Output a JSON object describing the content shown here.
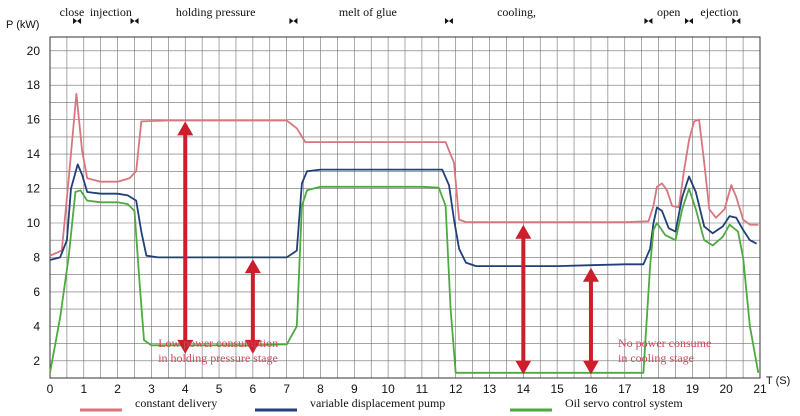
{
  "chart_data": {
    "type": "line",
    "ylabel": "P (kW)",
    "xlabel": "T (S)",
    "xlim": [
      0,
      21
    ],
    "ylim": [
      1,
      20.8
    ],
    "x_ticks": [
      "0",
      "1",
      "2",
      "3",
      "4",
      "5",
      "6",
      "7",
      "8",
      "9",
      "10",
      "11",
      "12",
      "13",
      "14",
      "15",
      "16",
      "17",
      "18",
      "19",
      "20",
      "21"
    ],
    "y_ticks": [
      "2",
      "4",
      "6",
      "8",
      "10",
      "12",
      "14",
      "16",
      "18",
      "20"
    ],
    "grid": true,
    "legend_position": "bottom",
    "stages": [
      {
        "label": "close",
        "x": 0.65
      },
      {
        "label": "injection",
        "x": 1.8
      },
      {
        "label": "holding pressure",
        "x": 4.9
      },
      {
        "label": "melt of glue",
        "x": 9.4
      },
      {
        "label": "cooling,",
        "x": 13.8
      },
      {
        "label": "open",
        "x": 18.3
      },
      {
        "label": "ejection",
        "x": 19.8
      }
    ],
    "stage_markers": [
      0.8,
      2.5,
      7.2,
      11.8,
      17.7,
      18.9,
      20.3
    ],
    "series": [
      {
        "name": "constant delivery",
        "color": "#d9757f",
        "points": [
          [
            0,
            8.1
          ],
          [
            0.35,
            8.4
          ],
          [
            0.55,
            12.5
          ],
          [
            0.78,
            17.5
          ],
          [
            0.95,
            14.2
          ],
          [
            1.1,
            12.6
          ],
          [
            1.5,
            12.4
          ],
          [
            2.0,
            12.4
          ],
          [
            2.35,
            12.6
          ],
          [
            2.55,
            13.0
          ],
          [
            2.7,
            15.9
          ],
          [
            3.5,
            15.95
          ],
          [
            5,
            15.95
          ],
          [
            6,
            15.95
          ],
          [
            7.0,
            15.95
          ],
          [
            7.3,
            15.5
          ],
          [
            7.55,
            14.7
          ],
          [
            8,
            14.7
          ],
          [
            9,
            14.7
          ],
          [
            10,
            14.7
          ],
          [
            11,
            14.7
          ],
          [
            11.7,
            14.7
          ],
          [
            11.95,
            13.5
          ],
          [
            12.1,
            10.2
          ],
          [
            12.3,
            10.05
          ],
          [
            13,
            10.05
          ],
          [
            14,
            10.05
          ],
          [
            15,
            10.05
          ],
          [
            16,
            10.05
          ],
          [
            17,
            10.05
          ],
          [
            17.7,
            10.1
          ],
          [
            17.85,
            11.0
          ],
          [
            17.95,
            12.1
          ],
          [
            18.1,
            12.3
          ],
          [
            18.25,
            11.9
          ],
          [
            18.4,
            11.0
          ],
          [
            18.6,
            10.9
          ],
          [
            18.75,
            13.0
          ],
          [
            18.9,
            14.8
          ],
          [
            19.05,
            15.9
          ],
          [
            19.2,
            16.0
          ],
          [
            19.35,
            13.5
          ],
          [
            19.5,
            10.8
          ],
          [
            19.7,
            10.3
          ],
          [
            19.95,
            10.8
          ],
          [
            20.15,
            12.2
          ],
          [
            20.3,
            11.5
          ],
          [
            20.5,
            10.2
          ],
          [
            20.7,
            9.9
          ],
          [
            20.95,
            9.9
          ]
        ]
      },
      {
        "name": "variable displacement pump",
        "color": "#213f7a",
        "points": [
          [
            0,
            7.85
          ],
          [
            0.3,
            8.0
          ],
          [
            0.5,
            9.0
          ],
          [
            0.62,
            12.0
          ],
          [
            0.82,
            13.4
          ],
          [
            0.95,
            12.8
          ],
          [
            1.1,
            11.8
          ],
          [
            1.5,
            11.7
          ],
          [
            2.0,
            11.7
          ],
          [
            2.3,
            11.6
          ],
          [
            2.55,
            11.3
          ],
          [
            2.7,
            9.5
          ],
          [
            2.85,
            8.1
          ],
          [
            3.2,
            8.0
          ],
          [
            5,
            8.0
          ],
          [
            6,
            8.0
          ],
          [
            7.0,
            8.0
          ],
          [
            7.3,
            8.4
          ],
          [
            7.45,
            12.3
          ],
          [
            7.6,
            13.0
          ],
          [
            8,
            13.1
          ],
          [
            9,
            13.1
          ],
          [
            10,
            13.1
          ],
          [
            11,
            13.1
          ],
          [
            11.6,
            13.1
          ],
          [
            11.8,
            12.2
          ],
          [
            11.95,
            10.2
          ],
          [
            12.1,
            8.5
          ],
          [
            12.3,
            7.7
          ],
          [
            12.6,
            7.5
          ],
          [
            14,
            7.5
          ],
          [
            15,
            7.5
          ],
          [
            16,
            7.55
          ],
          [
            17,
            7.6
          ],
          [
            17.55,
            7.6
          ],
          [
            17.75,
            8.5
          ],
          [
            17.85,
            10.0
          ],
          [
            17.95,
            10.9
          ],
          [
            18.1,
            10.7
          ],
          [
            18.3,
            9.7
          ],
          [
            18.5,
            9.5
          ],
          [
            18.7,
            11.5
          ],
          [
            18.9,
            12.7
          ],
          [
            19.1,
            11.8
          ],
          [
            19.35,
            9.8
          ],
          [
            19.6,
            9.4
          ],
          [
            19.9,
            9.8
          ],
          [
            20.1,
            10.4
          ],
          [
            20.3,
            10.3
          ],
          [
            20.5,
            9.6
          ],
          [
            20.7,
            9.0
          ],
          [
            20.9,
            8.8
          ]
        ]
      },
      {
        "name": "Oil servo control system",
        "color": "#4caa3f",
        "points": [
          [
            0,
            1.3
          ],
          [
            0.3,
            4.5
          ],
          [
            0.55,
            8.0
          ],
          [
            0.75,
            11.8
          ],
          [
            0.9,
            11.9
          ],
          [
            1.1,
            11.3
          ],
          [
            1.5,
            11.2
          ],
          [
            2.0,
            11.2
          ],
          [
            2.3,
            11.1
          ],
          [
            2.5,
            10.7
          ],
          [
            2.65,
            6.5
          ],
          [
            2.78,
            3.2
          ],
          [
            3.0,
            2.9
          ],
          [
            4,
            2.9
          ],
          [
            5,
            2.9
          ],
          [
            6,
            2.9
          ],
          [
            7.0,
            2.95
          ],
          [
            7.3,
            4.0
          ],
          [
            7.45,
            11.0
          ],
          [
            7.6,
            11.9
          ],
          [
            8,
            12.1
          ],
          [
            9,
            12.1
          ],
          [
            10,
            12.1
          ],
          [
            11,
            12.1
          ],
          [
            11.5,
            12.05
          ],
          [
            11.7,
            11.0
          ],
          [
            11.85,
            5.0
          ],
          [
            12.0,
            1.3
          ],
          [
            17.55,
            1.3
          ],
          [
            17.75,
            7.5
          ],
          [
            17.85,
            9.6
          ],
          [
            17.95,
            10.0
          ],
          [
            18.2,
            9.3
          ],
          [
            18.5,
            9.0
          ],
          [
            18.7,
            10.8
          ],
          [
            18.9,
            12.0
          ],
          [
            19.1,
            10.8
          ],
          [
            19.35,
            9.0
          ],
          [
            19.6,
            8.7
          ],
          [
            19.9,
            9.2
          ],
          [
            20.1,
            9.9
          ],
          [
            20.35,
            9.5
          ],
          [
            20.5,
            8.0
          ],
          [
            20.7,
            4.0
          ],
          [
            20.95,
            1.3
          ]
        ]
      }
    ],
    "arrows": [
      {
        "x": 4.0,
        "y1": 2.4,
        "y2": 15.9
      },
      {
        "x": 6.0,
        "y1": 2.4,
        "y2": 7.9
      },
      {
        "x": 14.0,
        "y1": 1.2,
        "y2": 9.9
      },
      {
        "x": 16.0,
        "y1": 1.2,
        "y2": 7.4
      }
    ],
    "annotations": [
      {
        "lines": [
          "Low power consumption",
          "in holding pressure stage"
        ],
        "x": 3.2,
        "y": 2.0
      },
      {
        "lines": [
          "No power consume",
          "in cooling stage"
        ],
        "x": 16.8,
        "y": 2.0
      }
    ]
  }
}
